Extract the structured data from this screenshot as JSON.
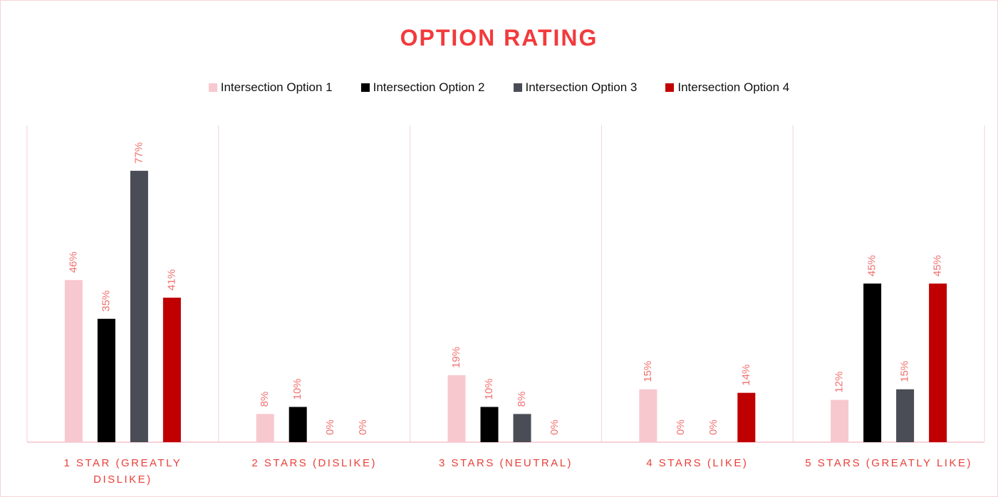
{
  "chart_data": {
    "type": "bar",
    "title": "OPTION RATING",
    "categories": [
      "1 STAR (GREATLY DISLIKE)",
      "2 STARS (DISLIKE)",
      "3 STARS (NEUTRAL)",
      "4 STARS (LIKE)",
      "5 STARS (GREATLY LIKE)"
    ],
    "series": [
      {
        "name": "Intersection Option 1",
        "color": "#f8c8cf",
        "values": [
          46,
          8,
          19,
          15,
          12
        ],
        "value_labels": [
          "46%",
          "8%",
          "19%",
          "15%",
          "12%"
        ]
      },
      {
        "name": "Intersection Option 2",
        "color": "#000000",
        "values": [
          35,
          10,
          10,
          0,
          45
        ],
        "value_labels": [
          "35%",
          "10%",
          "10%",
          "0%",
          "45%"
        ]
      },
      {
        "name": "Intersection Option 3",
        "color": "#4a4d55",
        "values": [
          77,
          0,
          8,
          0,
          15
        ],
        "value_labels": [
          "77%",
          "0%",
          "8%",
          "0%",
          "15%"
        ]
      },
      {
        "name": "Intersection Option 4",
        "color": "#c00000",
        "values": [
          41,
          0,
          0,
          14,
          45
        ],
        "value_labels": [
          "41%",
          "0%",
          "0%",
          "14%",
          "45%"
        ]
      }
    ],
    "legend": "top"
  }
}
